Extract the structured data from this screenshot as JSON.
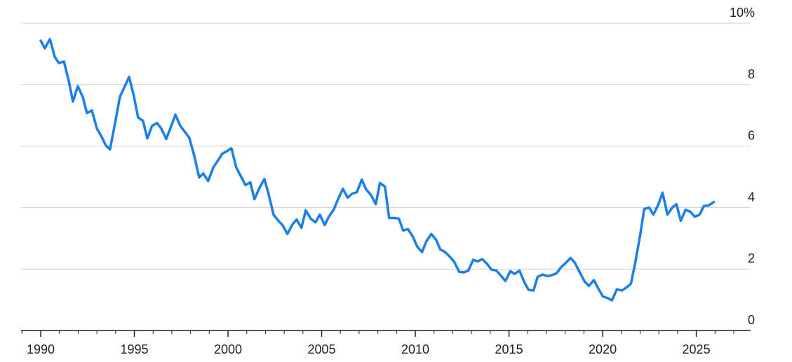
{
  "chart_data": {
    "type": "line",
    "xlim": [
      1988.95,
      2027.9
    ],
    "ylim": [
      0,
      10
    ],
    "yticks": [
      0,
      2,
      4,
      6,
      8,
      {
        "value": 10,
        "label": "10%"
      }
    ],
    "xticks": [
      1990,
      1995,
      2000,
      2005,
      2010,
      2015,
      2020,
      2025
    ],
    "xminorticks": [
      1989,
      1990,
      1991,
      1992,
      1993,
      1994,
      1995,
      1996,
      1997,
      1998,
      1999,
      2000,
      2001,
      2002,
      2003,
      2004,
      2005,
      2006,
      2007,
      2008,
      2009,
      2010,
      2011,
      2012,
      2013,
      2014,
      2015,
      2016,
      2017,
      2018,
      2019,
      2020,
      2021,
      2022,
      2023,
      2024,
      2025,
      2026,
      2027
    ],
    "grid": true,
    "series": [
      {
        "color": "#1a7fe8",
        "x": [
          1990.0,
          1990.22,
          1990.49,
          1990.75,
          1990.97,
          1991.24,
          1991.5,
          1991.72,
          1991.98,
          1992.25,
          1992.47,
          1992.73,
          1993.0,
          1993.22,
          1993.48,
          1993.7,
          1993.97,
          1994.23,
          1994.45,
          1994.72,
          1994.98,
          1995.2,
          1995.46,
          1995.69,
          1995.95,
          1996.21,
          1996.44,
          1996.7,
          1996.96,
          1997.19,
          1997.45,
          1997.71,
          1997.93,
          1998.2,
          1998.46,
          1998.68,
          1998.94,
          1999.21,
          1999.43,
          1999.69,
          1999.96,
          2000.18,
          2000.44,
          2000.7,
          2000.93,
          2001.19,
          2001.41,
          2001.68,
          2001.94,
          2002.16,
          2002.43,
          2002.69,
          2002.91,
          2003.17,
          2003.44,
          2003.66,
          2003.92,
          2004.15,
          2004.41,
          2004.67,
          2004.9,
          2005.16,
          2005.38,
          2005.64,
          2005.91,
          2006.13,
          2006.39,
          2006.62,
          2006.88,
          2007.14,
          2007.37,
          2007.63,
          2007.89,
          2008.11,
          2008.38,
          2008.6,
          2008.86,
          2009.12,
          2009.35,
          2009.61,
          2009.87,
          2010.1,
          2010.36,
          2010.58,
          2010.85,
          2011.11,
          2011.33,
          2011.59,
          2011.86,
          2012.08,
          2012.34,
          2012.6,
          2012.83,
          2013.09,
          2013.32,
          2013.58,
          2013.84,
          2014.06,
          2014.33,
          2014.55,
          2014.81,
          2015.07,
          2015.3,
          2015.56,
          2015.82,
          2016.05,
          2016.31,
          2016.53,
          2016.8,
          2017.06,
          2017.28,
          2017.54,
          2017.77,
          2018.03,
          2018.29,
          2018.52,
          2018.78,
          2019.04,
          2019.27,
          2019.53,
          2019.79,
          2020.01,
          2020.28,
          2020.5,
          2020.76,
          2021.03,
          2021.25,
          2021.51,
          2021.74,
          2022.0,
          2022.22,
          2022.48,
          2022.71,
          2022.97,
          2023.2,
          2023.46,
          2023.72,
          2023.94,
          2024.17,
          2024.43,
          2024.69,
          2024.92,
          2025.18,
          2025.4,
          2025.66,
          2025.93
        ],
        "values": [
          9.43,
          9.18,
          9.48,
          8.9,
          8.7,
          8.75,
          8.11,
          7.45,
          7.95,
          7.59,
          7.07,
          7.16,
          6.57,
          6.34,
          6.02,
          5.89,
          6.75,
          7.61,
          7.89,
          8.25,
          7.61,
          6.93,
          6.82,
          6.25,
          6.66,
          6.75,
          6.57,
          6.23,
          6.64,
          7.02,
          6.66,
          6.45,
          6.27,
          5.68,
          4.98,
          5.11,
          4.86,
          5.3,
          5.5,
          5.75,
          5.84,
          5.93,
          5.3,
          5.0,
          4.73,
          4.82,
          4.27,
          4.64,
          4.93,
          4.45,
          3.77,
          3.57,
          3.43,
          3.14,
          3.45,
          3.61,
          3.34,
          3.91,
          3.64,
          3.52,
          3.77,
          3.43,
          3.7,
          3.93,
          4.32,
          4.61,
          4.32,
          4.45,
          4.5,
          4.91,
          4.59,
          4.41,
          4.11,
          4.8,
          4.68,
          3.66,
          3.66,
          3.64,
          3.25,
          3.3,
          3.05,
          2.73,
          2.55,
          2.89,
          3.14,
          2.95,
          2.64,
          2.55,
          2.39,
          2.23,
          1.91,
          1.89,
          1.95,
          2.3,
          2.25,
          2.32,
          2.16,
          1.98,
          1.95,
          1.8,
          1.61,
          1.93,
          1.84,
          1.95,
          1.57,
          1.32,
          1.3,
          1.75,
          1.82,
          1.77,
          1.8,
          1.86,
          2.05,
          2.2,
          2.36,
          2.2,
          1.89,
          1.59,
          1.45,
          1.64,
          1.34,
          1.11,
          1.05,
          0.98,
          1.34,
          1.3,
          1.39,
          1.52,
          2.2,
          3.09,
          3.95,
          4.0,
          3.77,
          4.09,
          4.48,
          3.77,
          4.0,
          4.11,
          3.57,
          3.93,
          3.86,
          3.7,
          3.77,
          4.05,
          4.07,
          4.18
        ]
      }
    ]
  }
}
